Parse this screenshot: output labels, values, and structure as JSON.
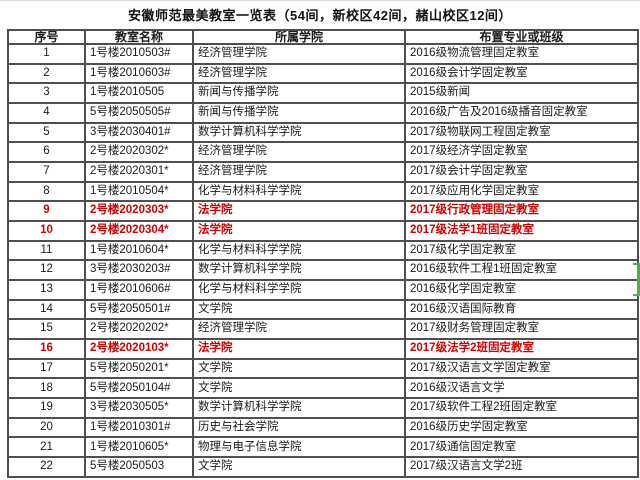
{
  "page": {
    "title": "安徽师范最美教室一览表（54间，新校区42间，赭山校区12间）"
  },
  "table": {
    "headers": [
      "序号",
      "教室名称",
      "所属学院",
      "布置专业或班级"
    ],
    "rows": [
      {
        "no": "1",
        "room": "1号楼2010503#",
        "college": "经济管理学院",
        "class": "2016级物流管理固定教室",
        "highlight": false
      },
      {
        "no": "2",
        "room": "1号楼2010603#",
        "college": "经济管理学院",
        "class": "2016级会计学固定教室",
        "highlight": false
      },
      {
        "no": "3",
        "room": "1号楼2010505",
        "college": "新闻与传播学院",
        "class": "2015级新闻",
        "highlight": false
      },
      {
        "no": "4",
        "room": "5号楼2050505#",
        "college": "新闻与传播学院",
        "class": "2016级广告及2016级播音固定教室",
        "highlight": false
      },
      {
        "no": "5",
        "room": "3号楼2030401#",
        "college": "数学计算机科学学院",
        "class": "2017级物联网工程固定教室",
        "highlight": false
      },
      {
        "no": "6",
        "room": "2号楼2020302*",
        "college": "经济管理学院",
        "class": "2017级经济学固定教室",
        "highlight": false
      },
      {
        "no": "7",
        "room": "2号楼2020301*",
        "college": "经济管理学院",
        "class": "2017级会计学固定教室",
        "highlight": false
      },
      {
        "no": "8",
        "room": "1号楼2010504*",
        "college": "化学与材料科学学院",
        "class": "2017级应用化学固定教室",
        "highlight": false
      },
      {
        "no": "9",
        "room": "2号楼2020303*",
        "college": "法学院",
        "class": "2017级行政管理固定教室",
        "highlight": true
      },
      {
        "no": "10",
        "room": "2号楼2020304*",
        "college": "法学院",
        "class": "2017级法学1班固定教室",
        "highlight": true
      },
      {
        "no": "11",
        "room": "1号楼2010604*",
        "college": "化学与材料科学学院",
        "class": "2017级化学固定教室",
        "highlight": false
      },
      {
        "no": "12",
        "room": "3号楼2030203#",
        "college": "数学计算机科学学院",
        "class": "2016级软件工程1班固定教室",
        "highlight": false
      },
      {
        "no": "13",
        "room": "1号楼2010606#",
        "college": "化学与材料科学学院",
        "class": "2016级化学固定教室",
        "highlight": false
      },
      {
        "no": "14",
        "room": "5号楼2050501#",
        "college": "文学院",
        "class": "2016级汉语国际教育",
        "highlight": false
      },
      {
        "no": "15",
        "room": "2号楼2020202*",
        "college": "经济管理学院",
        "class": "2017级财务管理固定教室",
        "highlight": false
      },
      {
        "no": "16",
        "room": "2号楼2020103*",
        "college": "法学院",
        "class": "2017级法学2班固定教室",
        "highlight": true
      },
      {
        "no": "17",
        "room": "5号楼2050201*",
        "college": "文学院",
        "class": "2017级汉语言文学固定教室",
        "highlight": false
      },
      {
        "no": "18",
        "room": "5号楼2050104#",
        "college": "文学院",
        "class": "2016级汉语言文学",
        "highlight": false
      },
      {
        "no": "19",
        "room": "3号楼2030505*",
        "college": "数学计算机科学学院",
        "class": "2017级软件工程2班固定教室",
        "highlight": false
      },
      {
        "no": "20",
        "room": "1号楼2010301#",
        "college": "历史与社会学院",
        "class": "2016级历史学固定教室",
        "highlight": false
      },
      {
        "no": "21",
        "room": "1号楼2010605*",
        "college": "物理与电子信息学院",
        "class": "2017级通信固定教室",
        "highlight": false
      },
      {
        "no": "22",
        "room": "5号楼2050503",
        "college": "文学院",
        "class": "2017级汉语言文学2班",
        "highlight": false
      }
    ]
  },
  "colors": {
    "highlight": "#d40000",
    "border": "#4f4f4f",
    "handle_green": "#4caf50"
  }
}
